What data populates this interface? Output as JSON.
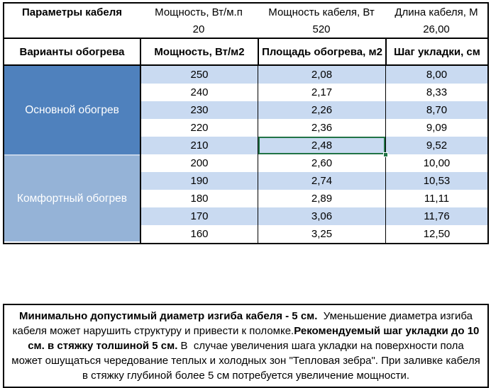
{
  "params_table": {
    "title": "Параметры кабеля",
    "columns": [
      {
        "label": "Мощность, Вт/м.п",
        "value": "20"
      },
      {
        "label": "Мощность кабеля, Вт",
        "value": "520"
      },
      {
        "label": "Длина кабеля, М",
        "value": "26,00"
      }
    ]
  },
  "heating_table": {
    "headers": [
      "Варианты обогрева",
      "Мощность, Вт/м2",
      "Площадь обогрева, м2",
      "Шаг укладки, см"
    ],
    "sections": [
      {
        "label": "Основной обогрев",
        "color": "#4F81BD",
        "rows": [
          [
            "250",
            "2,08",
            "8,00"
          ],
          [
            "240",
            "2,17",
            "8,33"
          ],
          [
            "230",
            "2,26",
            "8,70"
          ],
          [
            "220",
            "2,36",
            "9,09"
          ],
          [
            "210",
            "2,48",
            "9,52"
          ]
        ]
      },
      {
        "label": "Комфортный обогрев",
        "color": "#95B3D7",
        "rows": [
          [
            "200",
            "2,60",
            "10,00"
          ],
          [
            "190",
            "2,74",
            "10,53"
          ],
          [
            "180",
            "2,89",
            "11,11"
          ],
          [
            "170",
            "3,06",
            "11,76"
          ],
          [
            "160",
            "3,25",
            "12,50"
          ]
        ]
      }
    ],
    "selected_cell": {
      "section": "Основной обогрев",
      "row_power": "210",
      "column": "Площадь обогрева, м2",
      "value": "2,48",
      "selection_color": "#217346"
    },
    "stripe_color": "#C9DAF1"
  },
  "note": {
    "segments": [
      {
        "text": "Минимально допустимый диаметр изгиба кабеля - 5 см.",
        "bold": true
      },
      {
        "text": "  Уменьшение диаметра изгиба кабеля может нарушить структуру и привести к поломке.",
        "bold": false
      },
      {
        "text": "Рекомендуемый шаг укладки до 10 см. в стяжку толшиной 5 см.",
        "bold": true
      },
      {
        "text": " В  случае увеличения шага укладки на поверхности пола может ошущаться чередование теплых и холодных зон \"Тепловая зебра\". При заливке кабеля в стяжку глубиной более 5 см потребуется увеличение мощности.",
        "bold": false
      }
    ]
  }
}
